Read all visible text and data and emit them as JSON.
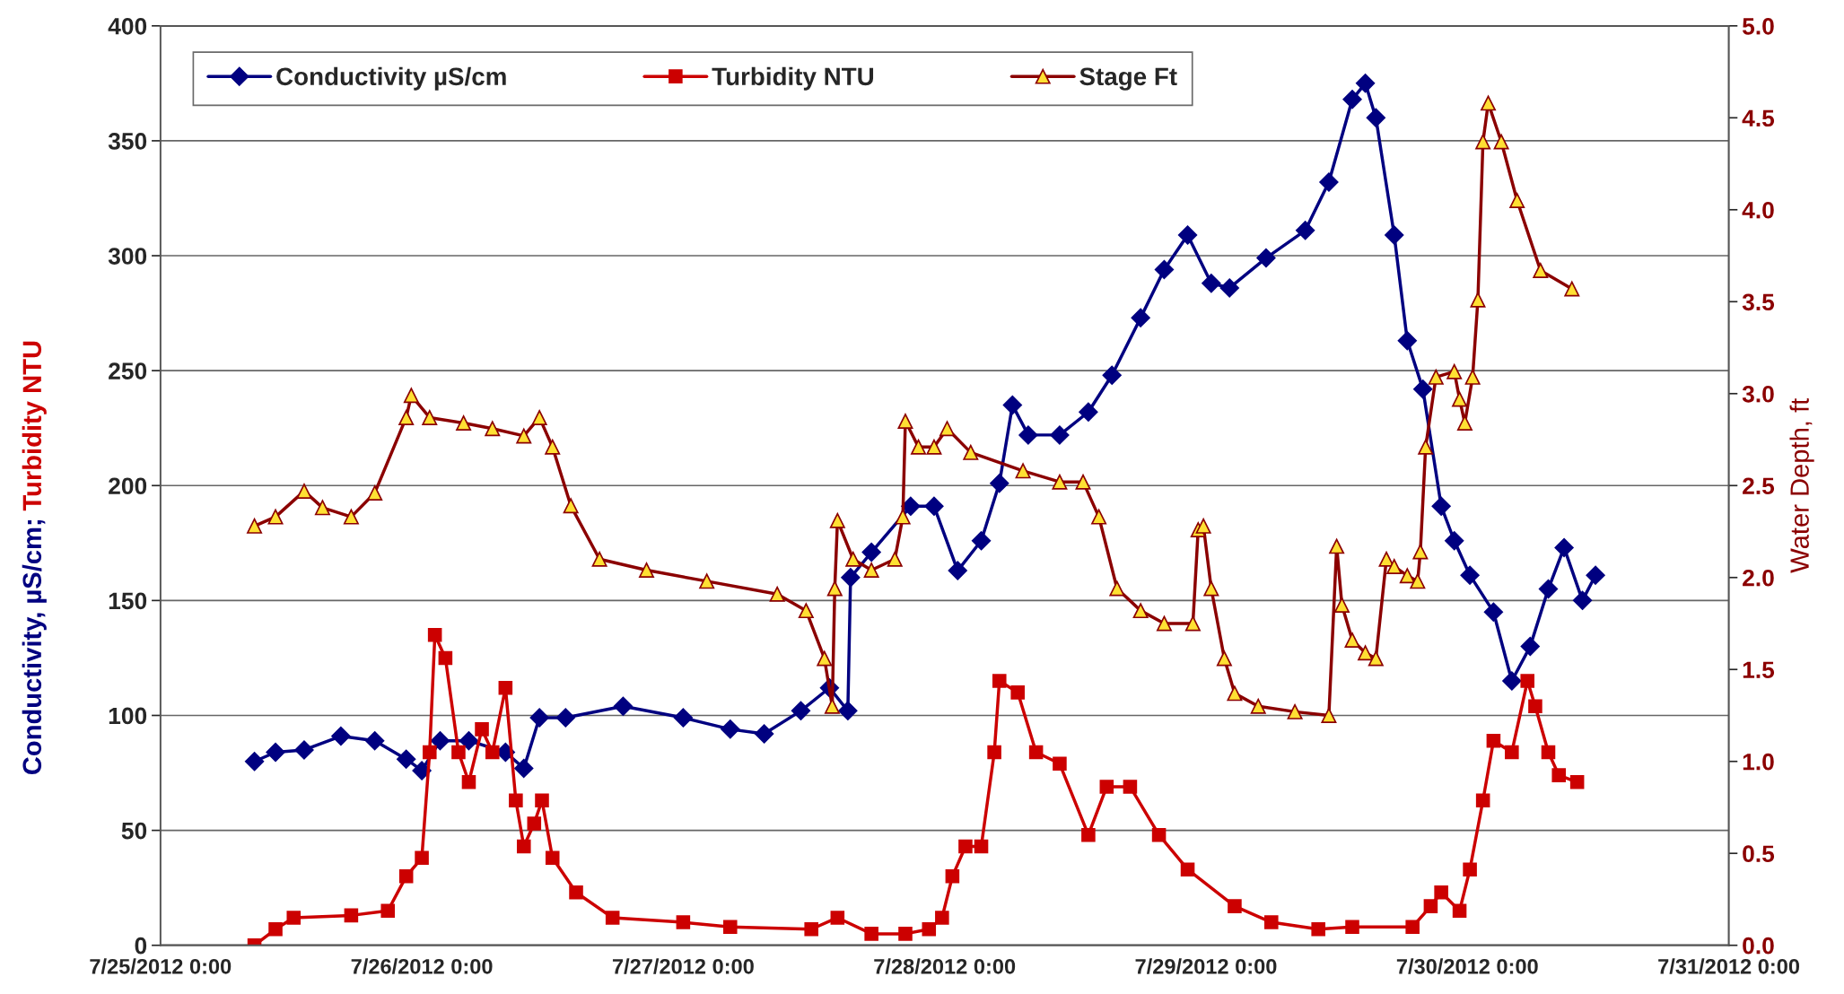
{
  "chart_data": {
    "type": "line",
    "ylabel": [
      "Conductivity, µS/cm;",
      "Turbidity NTU"
    ],
    "y2label": "Water Depth, ft",
    "xlim": [
      "2012-07-25T00:00",
      "2012-07-31T00:00"
    ],
    "xticks": [
      {
        "value": "2012-07-25T00:00",
        "label": "7/25/2012 0:00"
      },
      {
        "value": "2012-07-26T00:00",
        "label": "7/26/2012 0:00"
      },
      {
        "value": "2012-07-27T00:00",
        "label": "7/27/2012 0:00"
      },
      {
        "value": "2012-07-28T00:00",
        "label": "7/28/2012 0:00"
      },
      {
        "value": "2012-07-29T00:00",
        "label": "7/29/2012 0:00"
      },
      {
        "value": "2012-07-30T00:00",
        "label": "7/30/2012 0:00"
      },
      {
        "value": "2012-07-31T00:00",
        "label": "7/31/2012 0:00"
      }
    ],
    "ylim": [
      0,
      400
    ],
    "yticks": [
      0,
      50,
      100,
      150,
      200,
      250,
      300,
      350,
      400
    ],
    "y2lim": [
      0,
      5
    ],
    "y2ticks": [
      {
        "value": 0,
        "label": "0.0"
      },
      {
        "value": 0.5,
        "label": "0.5"
      },
      {
        "value": 1,
        "label": "1.0"
      },
      {
        "value": 1.5,
        "label": "1.5"
      },
      {
        "value": 2,
        "label": "2.0"
      },
      {
        "value": 2.5,
        "label": "2.5"
      },
      {
        "value": 3,
        "label": "3.0"
      },
      {
        "value": 3.5,
        "label": "3.5"
      },
      {
        "value": 4,
        "label": "4.0"
      },
      {
        "value": 4.5,
        "label": "4.5"
      },
      {
        "value": 5,
        "label": "5.0"
      }
    ],
    "grid": "y",
    "legend": "top",
    "series": [
      {
        "name": "Conductivity µS/cm",
        "color": "#000080",
        "marker": "diamond",
        "x": [
          "2012-07-25T08:38",
          "2012-07-25T10:34",
          "2012-07-25T13:12",
          "2012-07-25T16:34",
          "2012-07-25T19:41",
          "2012-07-25T22:34",
          "2012-07-26T00:00",
          "2012-07-26T01:41",
          "2012-07-26T04:19",
          "2012-07-26T07:41",
          "2012-07-26T09:22",
          "2012-07-26T10:48",
          "2012-07-26T13:12",
          "2012-07-26T18:29",
          "2012-07-27T00:00",
          "2012-07-27T04:19",
          "2012-07-27T07:26",
          "2012-07-27T10:48",
          "2012-07-27T13:26",
          "2012-07-27T15:07",
          "2012-07-27T15:22",
          "2012-07-27T17:17",
          "2012-07-27T20:53",
          "2012-07-27T23:02",
          "2012-07-28T01:12",
          "2012-07-28T03:22",
          "2012-07-28T05:02",
          "2012-07-28T06:14",
          "2012-07-28T07:41",
          "2012-07-28T10:34",
          "2012-07-28T13:12",
          "2012-07-28T15:22",
          "2012-07-28T18:00",
          "2012-07-28T20:10",
          "2012-07-28T22:19",
          "2012-07-29T00:29",
          "2012-07-29T02:10",
          "2012-07-29T05:31",
          "2012-07-29T09:07",
          "2012-07-29T11:17",
          "2012-07-29T13:26",
          "2012-07-29T14:38",
          "2012-07-29T15:36",
          "2012-07-29T17:17",
          "2012-07-29T18:29",
          "2012-07-29T19:55",
          "2012-07-29T21:36",
          "2012-07-29T22:48",
          "2012-07-30T00:14",
          "2012-07-30T02:24",
          "2012-07-30T04:05",
          "2012-07-30T05:46",
          "2012-07-30T07:26",
          "2012-07-30T08:53",
          "2012-07-30T10:34",
          "2012-07-30T11:46"
        ],
        "values": [
          80,
          84,
          85,
          91,
          89,
          81,
          76,
          89,
          89,
          84,
          77,
          99,
          99,
          104,
          99,
          94,
          92,
          102,
          112,
          102,
          160,
          171,
          191,
          191,
          163,
          176,
          201,
          235,
          222,
          222,
          232,
          248,
          273,
          294,
          309,
          288,
          286,
          299,
          311,
          332,
          368,
          375,
          360,
          309,
          263,
          242,
          191,
          176,
          161,
          145,
          115,
          130,
          155,
          173,
          150,
          161
        ]
      },
      {
        "name": "Turbidity NTU",
        "color": "#cc0000",
        "marker": "square",
        "x": [
          "2012-07-25T08:38",
          "2012-07-25T10:34",
          "2012-07-25T12:14",
          "2012-07-25T17:31",
          "2012-07-25T20:53",
          "2012-07-25T22:34",
          "2012-07-26T00:00",
          "2012-07-26T00:43",
          "2012-07-26T01:12",
          "2012-07-26T02:10",
          "2012-07-26T03:22",
          "2012-07-26T04:19",
          "2012-07-26T05:31",
          "2012-07-26T06:29",
          "2012-07-26T07:41",
          "2012-07-26T08:38",
          "2012-07-26T09:22",
          "2012-07-26T10:19",
          "2012-07-26T11:02",
          "2012-07-26T12:00",
          "2012-07-26T14:10",
          "2012-07-26T17:31",
          "2012-07-27T00:00",
          "2012-07-27T04:19",
          "2012-07-27T11:46",
          "2012-07-27T14:10",
          "2012-07-27T17:17",
          "2012-07-27T20:24",
          "2012-07-27T22:34",
          "2012-07-27T23:46",
          "2012-07-28T00:43",
          "2012-07-28T01:55",
          "2012-07-28T03:22",
          "2012-07-28T04:34",
          "2012-07-28T05:02",
          "2012-07-28T06:43",
          "2012-07-28T08:24",
          "2012-07-28T10:34",
          "2012-07-28T13:12",
          "2012-07-28T14:53",
          "2012-07-28T17:02",
          "2012-07-28T19:41",
          "2012-07-28T22:19",
          "2012-07-29T02:38",
          "2012-07-29T06:00",
          "2012-07-29T10:19",
          "2012-07-29T13:26",
          "2012-07-29T18:58",
          "2012-07-29T20:38",
          "2012-07-29T21:36",
          "2012-07-29T23:17",
          "2012-07-30T00:14",
          "2012-07-30T01:26",
          "2012-07-30T02:24",
          "2012-07-30T04:05",
          "2012-07-30T05:31",
          "2012-07-30T06:14",
          "2012-07-30T07:26",
          "2012-07-30T08:24",
          "2012-07-30T10:05"
        ],
        "values": [
          0,
          7,
          12,
          13,
          15,
          30,
          38,
          84,
          135,
          125,
          84,
          71,
          94,
          84,
          112,
          63,
          43,
          53,
          63,
          38,
          23,
          12,
          10,
          8,
          7,
          12,
          5,
          5,
          7,
          12,
          30,
          43,
          43,
          84,
          115,
          110,
          84,
          79,
          48,
          69,
          69,
          48,
          33,
          17,
          10,
          7,
          8,
          8,
          17,
          23,
          15,
          33,
          63,
          89,
          84,
          115,
          104,
          84,
          74,
          71
        ]
      },
      {
        "name": "Stage Ft",
        "color": "#8b0000",
        "marker": "triangle",
        "axis": "y2",
        "x": [
          "2012-07-25T08:38",
          "2012-07-25T10:34",
          "2012-07-25T13:12",
          "2012-07-25T14:53",
          "2012-07-25T17:31",
          "2012-07-25T19:41",
          "2012-07-25T22:34",
          "2012-07-25T23:02",
          "2012-07-26T00:43",
          "2012-07-26T03:50",
          "2012-07-26T06:29",
          "2012-07-26T09:22",
          "2012-07-26T10:48",
          "2012-07-26T12:00",
          "2012-07-26T13:41",
          "2012-07-26T16:19",
          "2012-07-26T20:38",
          "2012-07-27T02:10",
          "2012-07-27T08:38",
          "2012-07-27T11:17",
          "2012-07-27T12:58",
          "2012-07-27T13:41",
          "2012-07-27T13:55",
          "2012-07-27T14:10",
          "2012-07-27T15:36",
          "2012-07-27T17:17",
          "2012-07-27T19:26",
          "2012-07-27T20:10",
          "2012-07-27T20:24",
          "2012-07-27T21:36",
          "2012-07-27T23:02",
          "2012-07-28T00:14",
          "2012-07-28T02:24",
          "2012-07-28T07:12",
          "2012-07-28T10:34",
          "2012-07-28T12:43",
          "2012-07-28T14:10",
          "2012-07-28T15:50",
          "2012-07-28T18:00",
          "2012-07-28T20:10",
          "2012-07-28T22:48",
          "2012-07-28T23:17",
          "2012-07-28T23:46",
          "2012-07-29T00:29",
          "2012-07-29T01:41",
          "2012-07-29T02:38",
          "2012-07-29T04:48",
          "2012-07-29T08:10",
          "2012-07-29T11:17",
          "2012-07-29T12:00",
          "2012-07-29T12:29",
          "2012-07-29T13:26",
          "2012-07-29T14:38",
          "2012-07-29T15:36",
          "2012-07-29T16:34",
          "2012-07-29T17:17",
          "2012-07-29T18:29",
          "2012-07-29T19:26",
          "2012-07-29T19:41",
          "2012-07-29T20:10",
          "2012-07-29T21:07",
          "2012-07-29T22:48",
          "2012-07-29T23:17",
          "2012-07-29T23:46",
          "2012-07-30T00:29",
          "2012-07-30T00:58",
          "2012-07-30T01:26",
          "2012-07-30T01:55",
          "2012-07-30T03:07",
          "2012-07-30T04:34",
          "2012-07-30T06:43",
          "2012-07-30T09:36"
        ],
        "values": [
          2.28,
          2.33,
          2.47,
          2.38,
          2.33,
          2.46,
          2.87,
          2.99,
          2.87,
          2.84,
          2.81,
          2.77,
          2.87,
          2.71,
          2.39,
          2.1,
          2.04,
          1.98,
          1.91,
          1.82,
          1.56,
          1.3,
          1.94,
          2.31,
          2.1,
          2.04,
          2.1,
          2.33,
          2.85,
          2.71,
          2.71,
          2.81,
          2.68,
          2.58,
          2.52,
          2.52,
          2.33,
          1.94,
          1.82,
          1.75,
          1.75,
          2.26,
          2.28,
          1.94,
          1.56,
          1.37,
          1.3,
          1.27,
          1.25,
          2.17,
          1.85,
          1.66,
          1.59,
          1.56,
          2.1,
          2.06,
          2.01,
          1.98,
          2.14,
          2.71,
          3.09,
          3.12,
          2.97,
          2.84,
          3.09,
          3.51,
          4.37,
          4.58,
          4.37,
          4.05,
          3.67,
          3.57
        ]
      }
    ]
  }
}
